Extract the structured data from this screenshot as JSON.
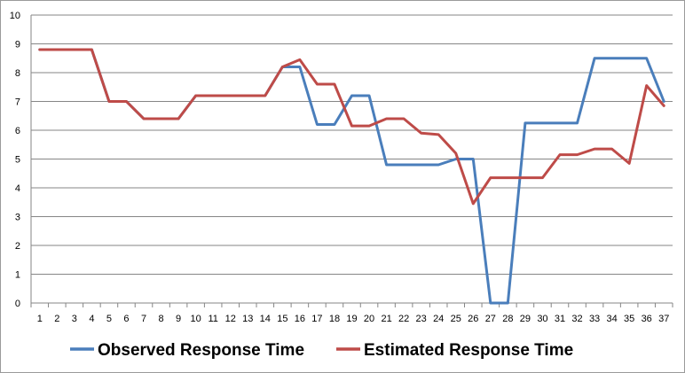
{
  "chart_data": {
    "type": "line",
    "title": "",
    "xlabel": "",
    "ylabel": "",
    "x": [
      1,
      2,
      3,
      4,
      5,
      6,
      7,
      8,
      9,
      10,
      11,
      12,
      13,
      14,
      15,
      16,
      17,
      18,
      19,
      20,
      21,
      22,
      23,
      24,
      25,
      26,
      27,
      28,
      29,
      30,
      31,
      32,
      33,
      34,
      35,
      36,
      37
    ],
    "ylim": [
      0,
      10
    ],
    "yticks": [
      0,
      1,
      2,
      3,
      4,
      5,
      6,
      7,
      8,
      9,
      10
    ],
    "grid": true,
    "legend_position": "bottom",
    "series": [
      {
        "name": "Observed Response Time",
        "color": "#4a7ebb",
        "values": [
          8.8,
          8.8,
          8.8,
          8.8,
          7.0,
          7.0,
          6.4,
          6.4,
          6.4,
          7.2,
          7.2,
          7.2,
          7.2,
          7.2,
          8.2,
          8.2,
          6.2,
          6.2,
          7.2,
          7.2,
          4.8,
          4.8,
          4.8,
          4.8,
          5.0,
          5.0,
          0.0,
          0.0,
          6.25,
          6.25,
          6.25,
          6.25,
          8.5,
          8.5,
          8.5,
          8.5,
          7.0
        ]
      },
      {
        "name": "Estimated Response Time",
        "color": "#be4b48",
        "values": [
          8.8,
          8.8,
          8.8,
          8.8,
          7.0,
          7.0,
          6.4,
          6.4,
          6.4,
          7.2,
          7.2,
          7.2,
          7.2,
          7.2,
          8.2,
          8.45,
          7.6,
          7.6,
          6.15,
          6.15,
          6.4,
          6.4,
          5.9,
          5.85,
          5.2,
          3.45,
          4.35,
          4.35,
          4.35,
          4.35,
          5.15,
          5.15,
          5.35,
          5.35,
          4.85,
          7.55,
          6.85
        ]
      }
    ]
  }
}
